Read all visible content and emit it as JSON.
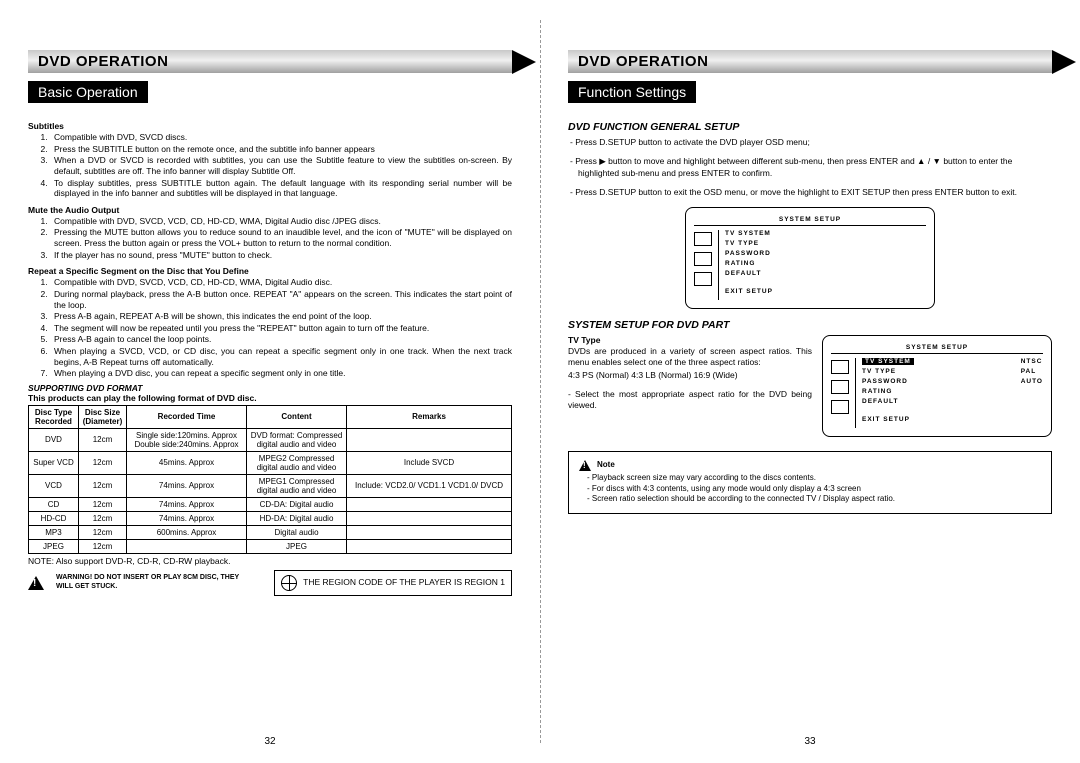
{
  "left": {
    "banner": "DVD OPERATION",
    "subbanner": "Basic Operation",
    "sections": {
      "sub_title": "Subtitles",
      "sub_items": [
        "Compatible with DVD, SVCD discs.",
        "Press the SUBTITLE button on the remote once, and the subtitle info banner appears",
        "When a DVD or SVCD is recorded with subtitles, you can use the Subtitle feature to view the subtitles on-screen. By default, subtitles are off. The info banner will display Subtitle Off.",
        "To display subtitles, press SUBTITLE button again. The default language with its responding serial number will be displayed in the info banner and subtitles will be displayed in that language."
      ],
      "mute_title": "Mute the Audio Output",
      "mute_items": [
        "Compatible with DVD, SVCD, VCD, CD, HD-CD, WMA, Digital Audio disc /JPEG discs.",
        "Pressing the MUTE button allows you to reduce sound to an inaudible level, and the icon of \"MUTE\" will be displayed on screen. Press the button again or press the VOL+ button to return to the normal condition.",
        "If the player has no sound, press \"MUTE\" button to check."
      ],
      "repeat_title": "Repeat a Specific Segment on the Disc that You Define",
      "repeat_items": [
        "Compatible with DVD, SVCD, VCD, CD, HD-CD, WMA, Digital Audio disc.",
        "During normal playback, press the A-B button once. REPEAT \"A\" appears on the screen. This indicates the start point of the loop.",
        "Press A-B again, REPEAT A-B will be shown, this indicates the end point of the loop.",
        "The segment will now be repeated until you press the \"REPEAT\" button again to turn off the feature.",
        "Press A-B again to cancel the loop points.",
        "When playing a SVCD, VCD, or CD disc, you can repeat a specific segment only in one track. When the next track begins, A-B Repeat turns off automatically.",
        "When playing a DVD disc, you can repeat a specific segment only in one title."
      ],
      "format_title": "SUPPORTING DVD FORMAT",
      "format_sub": "This products can play the following format of DVD disc.",
      "table_hdr": [
        "Disc Type Recorded",
        "Disc Size (Diameter)",
        "Recorded Time",
        "Content",
        "Remarks"
      ],
      "table_rows": [
        [
          "DVD",
          "12cm",
          "Single side:120mins. Approx\nDouble side:240mins. Approx",
          "DVD format: Compressed digital audio and video",
          ""
        ],
        [
          "Super VCD",
          "12cm",
          "45mins. Approx",
          "MPEG2 Compressed digital audio and video",
          "Include SVCD"
        ],
        [
          "VCD",
          "12cm",
          "74mins. Approx",
          "MPEG1 Compressed digital audio and video",
          "Include: VCD2.0/ VCD1.1 VCD1.0/ DVCD"
        ],
        [
          "CD",
          "12cm",
          "74mins. Approx",
          "CD-DA: Digital audio",
          ""
        ],
        [
          "HD-CD",
          "12cm",
          "74mins. Approx",
          "HD-DA: Digital audio",
          ""
        ],
        [
          "MP3",
          "12cm",
          "600mins. Approx",
          "Digital audio",
          ""
        ],
        [
          "JPEG",
          "12cm",
          "",
          "JPEG",
          ""
        ]
      ],
      "note_after": "NOTE: Also support DVD-R, CD-R, CD-RW playback.",
      "warn": "WARNING! DO NOT INSERT OR PLAY 8CM DISC, THEY WILL GET STUCK.",
      "region": "THE REGION CODE OF THE PLAYER IS REGION 1"
    },
    "page": "32"
  },
  "right": {
    "banner": "DVD OPERATION",
    "subbanner": "Function Settings",
    "gen_title": "DVD FUNCTION GENERAL SETUP",
    "gen_items": [
      "- Press D.SETUP button to activate the DVD player OSD menu;",
      "- Press ▶ button to move and highlight between different sub-menu, then press ENTER and ▲ / ▼ button to enter the highlighted sub-menu and press ENTER to confirm.",
      "- Press D.SETUP button to exit the OSD menu, or move the highlight to EXIT SETUP then press ENTER button to exit."
    ],
    "osd1": {
      "title": "SYSTEM SETUP",
      "items": [
        "TV SYSTEM",
        "TV TYPE",
        "PASSWORD",
        "RATING",
        "DEFAULT",
        "EXIT SETUP"
      ]
    },
    "sys_title": "SYSTEM SETUP FOR DVD PART",
    "tv_label": "TV Type",
    "tv_body1": "DVDs are produced in a variety of screen aspect ratios. This menu enables select one of the three aspect ratios:",
    "tv_ratios": "4:3 PS (Normal)    4:3 LB (Normal) 16:9 (Wide)",
    "tv_body2": "- Select the most appropriate aspect ratio for the DVD being viewed.",
    "osd2": {
      "title": "SYSTEM SETUP",
      "hi": "TV SYSTEM",
      "items": [
        "TV TYPE",
        "PASSWORD",
        "RATING",
        "DEFAULT",
        "EXIT SETUP"
      ],
      "opts": [
        "NTSC",
        "PAL",
        "AUTO"
      ]
    },
    "note_title": "Note",
    "notes": [
      "Playback screen size may vary according to the discs contents.",
      "For discs with 4:3 contents, using any mode would only display a 4:3 screen",
      "Screen ratio selection should be according to the connected TV / Display aspect ratio."
    ],
    "page": "33"
  }
}
